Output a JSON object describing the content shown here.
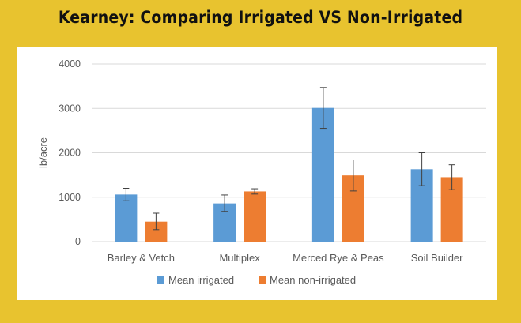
{
  "title": "Kearney: Comparing Irrigated VS Non-Irrigated",
  "chart_data": {
    "type": "bar",
    "title": "Kearney: Comparing Irrigated VS Non-Irrigated",
    "xlabel": "",
    "ylabel": "lb/acre",
    "ylim": [
      0,
      4000
    ],
    "yticks": [
      0,
      1000,
      2000,
      3000,
      4000
    ],
    "grid": true,
    "legend": "bottom",
    "categories": [
      "Barley & Vetch",
      "Multiplex",
      "Merced Rye & Peas",
      "Soil Builder"
    ],
    "series": [
      {
        "name": "Mean irrigated",
        "color": "#5b9bd5",
        "values": [
          1060,
          860,
          3010,
          1630
        ],
        "error": [
          [
            920,
            1200
          ],
          [
            680,
            1050
          ],
          [
            2550,
            3470
          ],
          [
            1260,
            2000
          ]
        ]
      },
      {
        "name": "Mean non-irrigated",
        "color": "#ed7d31",
        "values": [
          450,
          1130,
          1490,
          1450
        ],
        "error": [
          [
            270,
            640
          ],
          [
            1070,
            1190
          ],
          [
            1140,
            1840
          ],
          [
            1170,
            1730
          ]
        ]
      }
    ]
  }
}
